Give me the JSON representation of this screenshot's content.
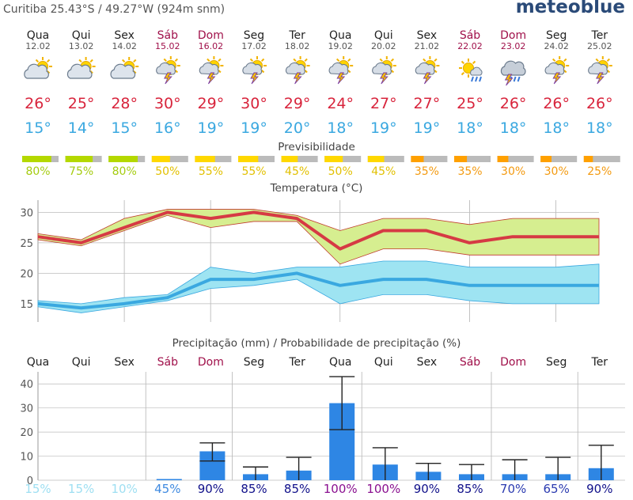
{
  "header": {
    "location": "Curitiba  25.43°S / 49.27°W (924m snm)",
    "brand": "meteoblue"
  },
  "days": [
    {
      "name": "Qua",
      "date": "12.02",
      "weekend": false,
      "icon": "partly-cloudy-sun-icon",
      "tmax": "26°",
      "tmin": "15°",
      "pred": "80%",
      "pred_value": 80,
      "pred_color": "#b4d800",
      "pred_text_color": "#a5cc10",
      "precip_name": "Qua",
      "prob": "15%",
      "prob_color": "#9edff2"
    },
    {
      "name": "Qui",
      "date": "13.02",
      "weekend": false,
      "icon": "partly-cloudy-sun-icon",
      "tmax": "25°",
      "tmin": "14°",
      "pred": "75%",
      "pred_value": 75,
      "pred_color": "#b4d800",
      "pred_text_color": "#a5cc10",
      "precip_name": "Qui",
      "prob": "15%",
      "prob_color": "#9edff2"
    },
    {
      "name": "Sex",
      "date": "14.02",
      "weekend": false,
      "icon": "partly-cloudy-sun-icon",
      "tmax": "28°",
      "tmin": "15°",
      "pred": "80%",
      "pred_value": 80,
      "pred_color": "#b4d800",
      "pred_text_color": "#a5cc10",
      "precip_name": "Sex",
      "prob": "10%",
      "prob_color": "#9edff2"
    },
    {
      "name": "Sáb",
      "date": "15.02",
      "weekend": true,
      "icon": "thunderstorm-sun-icon",
      "tmax": "30°",
      "tmin": "16°",
      "pred": "50%",
      "pred_value": 50,
      "pred_color": "#ffd800",
      "pred_text_color": "#e2c000",
      "precip_name": "Sáb",
      "prob": "45%",
      "prob_color": "#3f8ae0"
    },
    {
      "name": "Dom",
      "date": "16.02",
      "weekend": true,
      "icon": "thunderstorm-sun-icon",
      "tmax": "29°",
      "tmin": "19°",
      "pred": "55%",
      "pred_value": 55,
      "pred_color": "#ffd800",
      "pred_text_color": "#e2c000",
      "precip_name": "Dom",
      "prob": "90%",
      "prob_color": "#10108a"
    },
    {
      "name": "Seg",
      "date": "17.02",
      "weekend": false,
      "icon": "thunderstorm-sun-icon",
      "tmax": "30°",
      "tmin": "19°",
      "pred": "55%",
      "pred_value": 55,
      "pred_color": "#ffd800",
      "pred_text_color": "#e2c000",
      "precip_name": "Seg",
      "prob": "85%",
      "prob_color": "#10108a"
    },
    {
      "name": "Ter",
      "date": "18.02",
      "weekend": false,
      "icon": "thunderstorm-sun-icon",
      "tmax": "29°",
      "tmin": "20°",
      "pred": "45%",
      "pred_value": 45,
      "pred_color": "#ffd800",
      "pred_text_color": "#e2c000",
      "precip_name": "Ter",
      "prob": "85%",
      "prob_color": "#10108a"
    },
    {
      "name": "Qua",
      "date": "19.02",
      "weekend": false,
      "icon": "thunderstorm-sun-icon",
      "tmax": "24°",
      "tmin": "18°",
      "pred": "50%",
      "pred_value": 50,
      "pred_color": "#ffd800",
      "pred_text_color": "#e2c000",
      "precip_name": "Qua",
      "prob": "100%",
      "prob_color": "#8a1090"
    },
    {
      "name": "Qui",
      "date": "20.02",
      "weekend": false,
      "icon": "thunderstorm-sun-icon",
      "tmax": "27°",
      "tmin": "19°",
      "pred": "45%",
      "pred_value": 45,
      "pred_color": "#ffd800",
      "pred_text_color": "#e2c000",
      "precip_name": "Qui",
      "prob": "100%",
      "prob_color": "#8a1090"
    },
    {
      "name": "Sex",
      "date": "21.02",
      "weekend": false,
      "icon": "thunderstorm-sun-icon",
      "tmax": "27°",
      "tmin": "19°",
      "pred": "35%",
      "pred_value": 35,
      "pred_color": "#ffa000",
      "pred_text_color": "#f39a10",
      "precip_name": "Sex",
      "prob": "90%",
      "prob_color": "#10108a"
    },
    {
      "name": "Sáb",
      "date": "22.02",
      "weekend": true,
      "icon": "rain-sun-icon",
      "tmax": "25°",
      "tmin": "18°",
      "pred": "35%",
      "pred_value": 35,
      "pred_color": "#ffa000",
      "pred_text_color": "#f39a10",
      "precip_name": "Sáb",
      "prob": "85%",
      "prob_color": "#10108a"
    },
    {
      "name": "Dom",
      "date": "23.02",
      "weekend": true,
      "icon": "thunderstorm-cloud-icon",
      "tmax": "26°",
      "tmin": "18°",
      "pred": "30%",
      "pred_value": 30,
      "pred_color": "#ffa000",
      "pred_text_color": "#f39a10",
      "precip_name": "Dom",
      "prob": "70%",
      "prob_color": "#2a3ab0"
    },
    {
      "name": "Seg",
      "date": "24.02",
      "weekend": false,
      "icon": "thunderstorm-sun-icon",
      "tmax": "26°",
      "tmin": "18°",
      "pred": "30%",
      "pred_value": 30,
      "pred_color": "#ffa000",
      "pred_text_color": "#f39a10",
      "precip_name": "Seg",
      "prob": "65%",
      "prob_color": "#2a3ab0"
    },
    {
      "name": "Ter",
      "date": "25.02",
      "weekend": false,
      "icon": "thunderstorm-sun-icon",
      "tmax": "26°",
      "tmin": "18°",
      "pred": "25%",
      "pred_value": 25,
      "pred_color": "#ffa000",
      "pred_text_color": "#f39a10",
      "precip_name": "Ter",
      "prob": "90%",
      "prob_color": "#10108a"
    }
  ],
  "titles": {
    "predictability": "Previsibilidade",
    "temperature": "Temperatura (°C)",
    "precipitation": "Precipitação (mm) / Probabilidade de precipitação (%)"
  },
  "colors": {
    "tmax_text": "#d8243c",
    "tmin_text": "#3aa8e0",
    "weekend_text": "#a0104a",
    "max_line": "#d63a44",
    "max_band": "#d6ee90",
    "min_line": "#3aa8e0",
    "min_band": "#9ee4f2",
    "precip_bar": "#2e86e4",
    "pred_gray": "#bbbbbb"
  },
  "chart_data": [
    {
      "type": "line",
      "title": "Temperatura (°C)",
      "x": [
        "12.02",
        "13.02",
        "14.02",
        "15.02",
        "16.02",
        "17.02",
        "18.02",
        "19.02",
        "20.02",
        "21.02",
        "22.02",
        "23.02",
        "24.02",
        "25.02"
      ],
      "y_ticks": [
        "15",
        "20",
        "25",
        "30"
      ],
      "ylim": [
        12,
        32
      ],
      "grid": true,
      "series": [
        {
          "name": "max",
          "values": [
            26,
            25,
            27.5,
            30,
            29,
            30,
            29,
            24,
            27,
            27,
            25,
            26,
            26,
            26
          ],
          "band_low": [
            25.5,
            24.5,
            27,
            29.5,
            27.5,
            28.5,
            28.5,
            21.5,
            24,
            24,
            23,
            23,
            23,
            23
          ],
          "band_high": [
            26.5,
            25.5,
            29,
            30.5,
            30.5,
            30.5,
            29.5,
            27,
            29,
            29,
            28,
            29,
            29,
            29
          ]
        },
        {
          "name": "min",
          "values": [
            15,
            14.3,
            15,
            16,
            19,
            19,
            20,
            18,
            19,
            19,
            18,
            18,
            18,
            18
          ],
          "band_low": [
            14.5,
            13.5,
            14.5,
            15.5,
            17.5,
            18,
            19,
            15,
            16.5,
            16.5,
            15.5,
            15,
            15,
            15
          ],
          "band_high": [
            15.5,
            15,
            16,
            16.5,
            21,
            20,
            21,
            21,
            22,
            22,
            21,
            21,
            21,
            21.5
          ]
        }
      ]
    },
    {
      "type": "bar",
      "title": "Precipitação (mm) / Probabilidade de precipitação (%)",
      "categories": [
        "Qua",
        "Qui",
        "Sex",
        "Sáb",
        "Dom",
        "Seg",
        "Ter",
        "Qua",
        "Qui",
        "Sex",
        "Sáb",
        "Dom",
        "Seg",
        "Ter"
      ],
      "y_ticks": [
        "0",
        "10",
        "20",
        "30",
        "40"
      ],
      "ylim": [
        0,
        45
      ],
      "grid": true,
      "values": [
        0,
        0,
        0,
        0.5,
        12,
        2.5,
        4,
        32,
        6.5,
        3.5,
        2.5,
        2.5,
        2.5,
        5
      ],
      "err_low": [
        0,
        0,
        0,
        0,
        8,
        0,
        0,
        21,
        0,
        0,
        0,
        0,
        0,
        0
      ],
      "err_high": [
        0,
        0,
        0,
        0,
        15.5,
        5.5,
        9.5,
        43,
        13.5,
        7,
        6.5,
        8.5,
        9.5,
        14.5
      ],
      "probabilities": [
        "15%",
        "15%",
        "10%",
        "45%",
        "90%",
        "85%",
        "85%",
        "100%",
        "100%",
        "90%",
        "85%",
        "70%",
        "65%",
        "90%"
      ]
    }
  ]
}
